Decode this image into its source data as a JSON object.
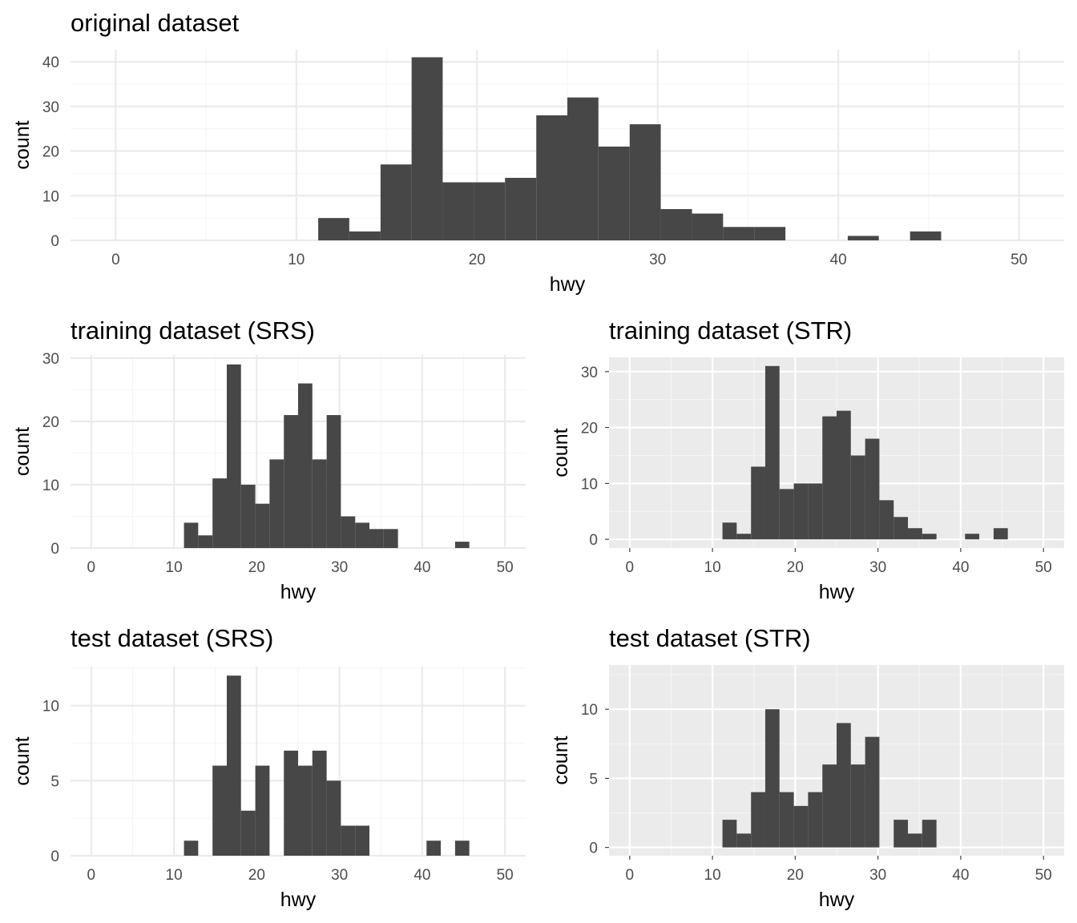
{
  "chart_data": [
    {
      "type": "bar",
      "title": "original dataset",
      "xlabel": "hwy",
      "ylabel": "count",
      "theme": "minimal",
      "xlim": [
        -2.5,
        52.5
      ],
      "ylim": [
        0,
        42.7
      ],
      "xticks": [
        0,
        10,
        20,
        30,
        40,
        50
      ],
      "yticks": [
        0,
        10,
        20,
        30,
        40
      ],
      "bin_width": 1.7241,
      "bins": [
        {
          "x0": 11.21,
          "x1": 12.93,
          "count": 5
        },
        {
          "x0": 12.93,
          "x1": 14.66,
          "count": 2
        },
        {
          "x0": 14.66,
          "x1": 16.38,
          "count": 17
        },
        {
          "x0": 16.38,
          "x1": 18.1,
          "count": 41
        },
        {
          "x0": 18.1,
          "x1": 19.83,
          "count": 13
        },
        {
          "x0": 19.83,
          "x1": 21.55,
          "count": 13
        },
        {
          "x0": 21.55,
          "x1": 23.28,
          "count": 14
        },
        {
          "x0": 23.28,
          "x1": 25.0,
          "count": 28
        },
        {
          "x0": 25.0,
          "x1": 26.72,
          "count": 32
        },
        {
          "x0": 26.72,
          "x1": 28.45,
          "count": 21
        },
        {
          "x0": 28.45,
          "x1": 30.17,
          "count": 26
        },
        {
          "x0": 30.17,
          "x1": 31.9,
          "count": 7
        },
        {
          "x0": 31.9,
          "x1": 33.62,
          "count": 6
        },
        {
          "x0": 33.62,
          "x1": 35.34,
          "count": 3
        },
        {
          "x0": 35.34,
          "x1": 37.07,
          "count": 3
        },
        {
          "x0": 40.52,
          "x1": 42.24,
          "count": 1
        },
        {
          "x0": 43.97,
          "x1": 45.69,
          "count": 2
        }
      ]
    },
    {
      "type": "bar",
      "title": "training dataset (SRS)",
      "xlabel": "hwy",
      "ylabel": "count",
      "theme": "minimal",
      "xlim": [
        -2.5,
        52.5
      ],
      "ylim": [
        0,
        30.5
      ],
      "xticks": [
        0,
        10,
        20,
        30,
        40,
        50
      ],
      "yticks": [
        0,
        10,
        20,
        30
      ],
      "bin_width": 1.7241,
      "bins": [
        {
          "x0": 11.21,
          "x1": 12.93,
          "count": 4
        },
        {
          "x0": 12.93,
          "x1": 14.66,
          "count": 2
        },
        {
          "x0": 14.66,
          "x1": 16.38,
          "count": 11
        },
        {
          "x0": 16.38,
          "x1": 18.1,
          "count": 29
        },
        {
          "x0": 18.1,
          "x1": 19.83,
          "count": 10
        },
        {
          "x0": 19.83,
          "x1": 21.55,
          "count": 7
        },
        {
          "x0": 21.55,
          "x1": 23.28,
          "count": 14
        },
        {
          "x0": 23.28,
          "x1": 25.0,
          "count": 21
        },
        {
          "x0": 25.0,
          "x1": 26.72,
          "count": 26
        },
        {
          "x0": 26.72,
          "x1": 28.45,
          "count": 14
        },
        {
          "x0": 28.45,
          "x1": 30.17,
          "count": 21
        },
        {
          "x0": 30.17,
          "x1": 31.9,
          "count": 5
        },
        {
          "x0": 31.9,
          "x1": 33.62,
          "count": 4
        },
        {
          "x0": 33.62,
          "x1": 35.34,
          "count": 3
        },
        {
          "x0": 35.34,
          "x1": 37.07,
          "count": 3
        },
        {
          "x0": 43.97,
          "x1": 45.69,
          "count": 1
        }
      ]
    },
    {
      "type": "bar",
      "title": "training dataset (STR)",
      "xlabel": "hwy",
      "ylabel": "count",
      "theme": "grey",
      "xlim": [
        -2.5,
        52.5
      ],
      "ylim": [
        -1.55,
        32.55
      ],
      "xticks": [
        0,
        10,
        20,
        30,
        40,
        50
      ],
      "yticks": [
        0,
        10,
        20,
        30
      ],
      "bin_width": 1.7241,
      "bins": [
        {
          "x0": 11.21,
          "x1": 12.93,
          "count": 3
        },
        {
          "x0": 12.93,
          "x1": 14.66,
          "count": 1
        },
        {
          "x0": 14.66,
          "x1": 16.38,
          "count": 13
        },
        {
          "x0": 16.38,
          "x1": 18.1,
          "count": 31
        },
        {
          "x0": 18.1,
          "x1": 19.83,
          "count": 9
        },
        {
          "x0": 19.83,
          "x1": 21.55,
          "count": 10
        },
        {
          "x0": 21.55,
          "x1": 23.28,
          "count": 10
        },
        {
          "x0": 23.28,
          "x1": 25.0,
          "count": 22
        },
        {
          "x0": 25.0,
          "x1": 26.72,
          "count": 23
        },
        {
          "x0": 26.72,
          "x1": 28.45,
          "count": 15
        },
        {
          "x0": 28.45,
          "x1": 30.17,
          "count": 18
        },
        {
          "x0": 30.17,
          "x1": 31.9,
          "count": 7
        },
        {
          "x0": 31.9,
          "x1": 33.62,
          "count": 4
        },
        {
          "x0": 33.62,
          "x1": 35.34,
          "count": 2
        },
        {
          "x0": 35.34,
          "x1": 37.07,
          "count": 1
        },
        {
          "x0": 40.52,
          "x1": 42.24,
          "count": 1
        },
        {
          "x0": 43.97,
          "x1": 45.69,
          "count": 2
        }
      ]
    },
    {
      "type": "bar",
      "title": "test dataset (SRS)",
      "xlabel": "hwy",
      "ylabel": "count",
      "theme": "minimal",
      "xlim": [
        -2.5,
        52.5
      ],
      "ylim": [
        0,
        12.6
      ],
      "xticks": [
        0,
        10,
        20,
        30,
        40,
        50
      ],
      "yticks": [
        0,
        5,
        10
      ],
      "bin_width": 1.7241,
      "bins": [
        {
          "x0": 11.21,
          "x1": 12.93,
          "count": 1
        },
        {
          "x0": 14.66,
          "x1": 16.38,
          "count": 6
        },
        {
          "x0": 16.38,
          "x1": 18.1,
          "count": 12
        },
        {
          "x0": 18.1,
          "x1": 19.83,
          "count": 3
        },
        {
          "x0": 19.83,
          "x1": 21.55,
          "count": 6
        },
        {
          "x0": 23.28,
          "x1": 25.0,
          "count": 7
        },
        {
          "x0": 25.0,
          "x1": 26.72,
          "count": 6
        },
        {
          "x0": 26.72,
          "x1": 28.45,
          "count": 7
        },
        {
          "x0": 28.45,
          "x1": 30.17,
          "count": 5
        },
        {
          "x0": 30.17,
          "x1": 31.9,
          "count": 2
        },
        {
          "x0": 31.9,
          "x1": 33.62,
          "count": 2
        },
        {
          "x0": 40.52,
          "x1": 42.24,
          "count": 1
        },
        {
          "x0": 43.97,
          "x1": 45.69,
          "count": 1
        }
      ]
    },
    {
      "type": "bar",
      "title": "test dataset (STR)",
      "xlabel": "hwy",
      "ylabel": "count",
      "theme": "grey",
      "xlim": [
        -2.5,
        52.5
      ],
      "ylim": [
        -0.6,
        13.2
      ],
      "xticks": [
        0,
        10,
        20,
        30,
        40,
        50
      ],
      "yticks": [
        0,
        5,
        10
      ],
      "bin_width": 1.7241,
      "bins": [
        {
          "x0": 11.21,
          "x1": 12.93,
          "count": 2
        },
        {
          "x0": 12.93,
          "x1": 14.66,
          "count": 1
        },
        {
          "x0": 14.66,
          "x1": 16.38,
          "count": 4
        },
        {
          "x0": 16.38,
          "x1": 18.1,
          "count": 10
        },
        {
          "x0": 18.1,
          "x1": 19.83,
          "count": 4
        },
        {
          "x0": 19.83,
          "x1": 21.55,
          "count": 3
        },
        {
          "x0": 21.55,
          "x1": 23.28,
          "count": 4
        },
        {
          "x0": 23.28,
          "x1": 25.0,
          "count": 6
        },
        {
          "x0": 25.0,
          "x1": 26.72,
          "count": 9
        },
        {
          "x0": 26.72,
          "x1": 28.45,
          "count": 6
        },
        {
          "x0": 28.45,
          "x1": 30.17,
          "count": 8
        },
        {
          "x0": 31.9,
          "x1": 33.62,
          "count": 2
        },
        {
          "x0": 33.62,
          "x1": 35.34,
          "count": 1
        },
        {
          "x0": 35.34,
          "x1": 37.07,
          "count": 2
        }
      ]
    }
  ],
  "colors": {
    "bar_fill": "#474747",
    "grey_panel_bg": "#EBEBEB",
    "minimal_grid_major": "#EBEBEB",
    "minimal_grid_minor": "#F5F5F5",
    "grey_grid_major": "#FFFFFF",
    "grey_grid_minor": "#F4F4F4",
    "tick_text": "#4D4D4D",
    "title_text": "#000000"
  }
}
